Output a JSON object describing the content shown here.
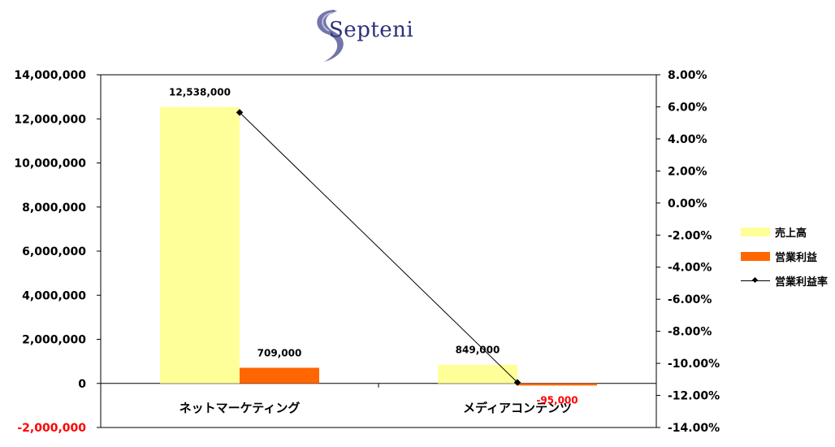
{
  "logo": {
    "text": "Septeni"
  },
  "chart_data": {
    "type": "bar",
    "categories": [
      "ネットマーケティング",
      "メディアコンテンツ"
    ],
    "series": [
      {
        "name": "売上高",
        "kind": "bar",
        "axis": "left",
        "color": "#ffff99",
        "values": [
          12538000,
          849000
        ],
        "labels": [
          "12,538,000",
          "849,000"
        ]
      },
      {
        "name": "営業利益",
        "kind": "bar",
        "axis": "left",
        "color": "#ff6600",
        "values": [
          709000,
          -95000
        ],
        "labels": [
          "709,000",
          "-95,000"
        ]
      },
      {
        "name": "営業利益率",
        "kind": "line",
        "axis": "right",
        "color": "#000000",
        "values": [
          5.65,
          -11.19
        ]
      }
    ],
    "left_axis": {
      "ylim": [
        -2000000,
        14000000
      ],
      "ticks": [
        "14,000,000",
        "12,000,000",
        "10,000,000",
        "8,000,000",
        "6,000,000",
        "4,000,000",
        "2,000,000",
        "0",
        "-2,000,000"
      ],
      "tick_values": [
        14000000,
        12000000,
        10000000,
        8000000,
        6000000,
        4000000,
        2000000,
        0,
        -2000000
      ]
    },
    "right_axis": {
      "ylim": [
        -14,
        8
      ],
      "ticks": [
        "8.00%",
        "6.00%",
        "4.00%",
        "2.00%",
        "0.00%",
        "-2.00%",
        "-4.00%",
        "-6.00%",
        "-8.00%",
        "-10.00%",
        "-12.00%",
        "-14.00%"
      ],
      "tick_values": [
        8,
        6,
        4,
        2,
        0,
        -2,
        -4,
        -6,
        -8,
        -10,
        -12,
        -14
      ]
    },
    "negative_label_color": "#ff0000",
    "legend_position": "right",
    "grid": false
  }
}
